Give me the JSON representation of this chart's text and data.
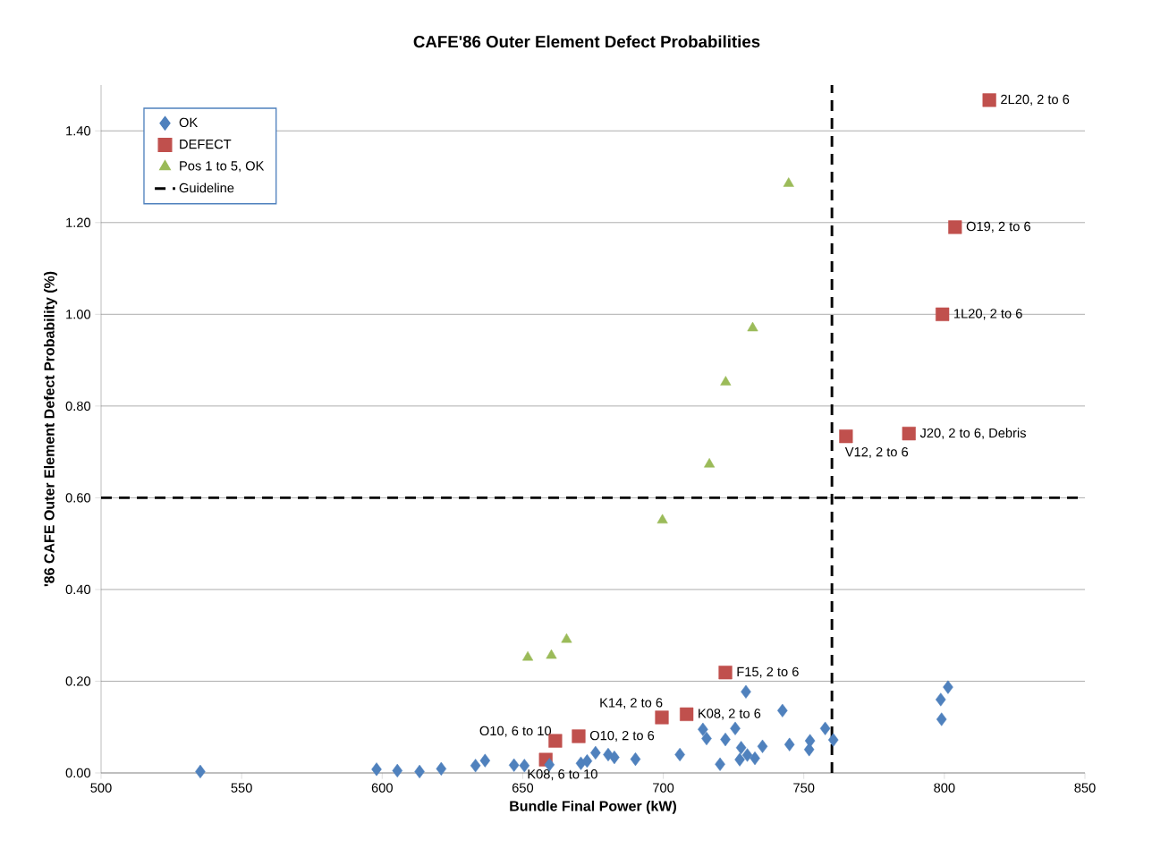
{
  "chart_data": {
    "type": "scatter",
    "title": "CAFE'86 Outer Element Defect Probabilities",
    "xlabel": "Bundle Final Power (kW)",
    "ylabel": "'86 CAFE Outer Element Defect Probability (%)",
    "xlim": [
      500,
      850
    ],
    "xticks": [
      500,
      550,
      600,
      650,
      700,
      750,
      800,
      850
    ],
    "ylim": [
      0,
      1.5
    ],
    "yticks": [
      {
        "value": 0,
        "label": "0.00"
      },
      {
        "value": 0.2,
        "label": "0.20"
      },
      {
        "value": 0.4,
        "label": "0.40"
      },
      {
        "value": 0.6,
        "label": "0.60"
      },
      {
        "value": 0.8,
        "label": "0.80"
      },
      {
        "value": 1.0,
        "label": "1.00"
      },
      {
        "value": 1.2,
        "label": "1.20"
      },
      {
        "value": 1.4,
        "label": "1.40"
      }
    ],
    "grid": "y",
    "legend": "top left",
    "series": [
      {
        "name": "OK",
        "color": "#4f81bd",
        "marker": "diamond",
        "x": [
          535.3,
          598,
          605.4,
          613.3,
          621,
          633.2,
          636.6,
          646.9,
          650.6,
          659.5,
          670.7,
          672.9,
          675.9,
          680.4,
          682.6,
          690.1,
          705.9,
          714.1,
          715.4,
          720.2,
          722.1,
          725.6,
          729.4,
          727.7,
          727.2,
          729.9,
          732.6,
          735.3,
          742.4,
          744.9,
          752.2,
          751.9,
          757.6,
          760.5,
          798.7,
          799,
          801.3
        ],
        "values": [
          0.003,
          0.008,
          0.005,
          0.003,
          0.009,
          0.016,
          0.027,
          0.017,
          0.016,
          0.018,
          0.021,
          0.026,
          0.044,
          0.04,
          0.034,
          0.03,
          0.04,
          0.095,
          0.075,
          0.019,
          0.073,
          0.097,
          0.177,
          0.055,
          0.029,
          0.039,
          0.032,
          0.058,
          0.136,
          0.062,
          0.07,
          0.051,
          0.097,
          0.072,
          0.16,
          0.117,
          0.187
        ]
      },
      {
        "name": "DEFECT",
        "color": "#c0504d",
        "marker": "square",
        "x": [
          658.2,
          661.6,
          669.9,
          699.5,
          708.3,
          722.1,
          765,
          787.4,
          799.3,
          803.8,
          816
        ],
        "values": [
          0.029,
          0.07,
          0.08,
          0.121,
          0.128,
          0.219,
          0.734,
          0.74,
          1.0,
          1.19,
          1.467
        ]
      },
      {
        "name": "Pos 1 to 5, OK",
        "color": "#9bbb59",
        "marker": "triangle",
        "x": [
          651.8,
          660.2,
          665.6,
          699.7,
          716.4,
          722.2,
          731.8,
          744.6
        ],
        "values": [
          0.252,
          0.256,
          0.291,
          0.551,
          0.673,
          0.852,
          0.97,
          1.285
        ]
      }
    ],
    "ref_lines": [
      {
        "axis": "y",
        "value": 0.6,
        "label": "Guideline",
        "color": "#000000",
        "line_style": "dashed"
      },
      {
        "axis": "x",
        "value": 760,
        "color": "#000000",
        "line_style": "dashed"
      }
    ],
    "annotations": [
      {
        "text": "2L20, 2 to 6",
        "x": 816,
        "y": 1.467
      },
      {
        "text": "O19, 2 to 6",
        "x": 803.8,
        "y": 1.19
      },
      {
        "text": "1L20, 2 to 6",
        "x": 799.3,
        "y": 1.0
      },
      {
        "text": "J20, 2 to 6, Debris",
        "x": 787.4,
        "y": 0.74
      },
      {
        "text": "V12, 2 to 6",
        "x": 765,
        "y": 0.734
      },
      {
        "text": "F15, 2 to 6",
        "x": 722.1,
        "y": 0.219
      },
      {
        "text": "K08, 2 to 6",
        "x": 708.3,
        "y": 0.128
      },
      {
        "text": "K14, 2 to 6",
        "x": 699.5,
        "y": 0.121
      },
      {
        "text": "O10, 2 to 6",
        "x": 669.9,
        "y": 0.08
      },
      {
        "text": "O10, 6 to 10",
        "x": 661.6,
        "y": 0.07
      },
      {
        "text": "K08, 6 to 10",
        "x": 658.2,
        "y": 0.029
      }
    ]
  }
}
